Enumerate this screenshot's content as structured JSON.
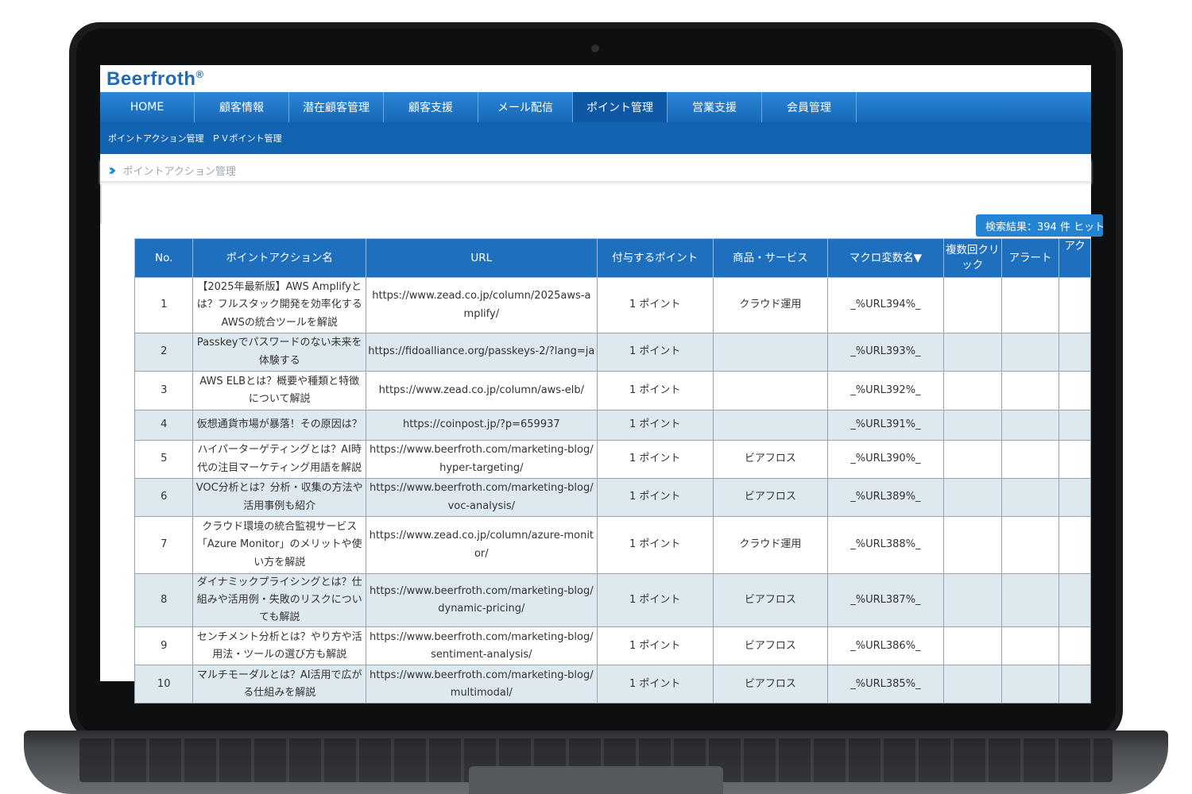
{
  "app": {
    "logo": "Beerfroth",
    "logo_mark": "®"
  },
  "nav": [
    "HOME",
    "顧客情報",
    "潜在顧客管理",
    "顧客支援",
    "メール配信",
    "ポイント管理",
    "営業支援",
    "会員管理"
  ],
  "nav_active_index": 5,
  "subnav": [
    "ポイントアクション管理",
    "ＰＶポイント管理"
  ],
  "breadcrumb": "ポイントアクション管理",
  "search_result": "検索結果：394 件 ヒット",
  "table": {
    "headers": [
      "No.",
      "ポイントアクション名",
      "URL",
      "付与するポイント",
      "商品・サービス",
      "マクロ変数名▼",
      "複数回クリック",
      "アラート",
      "アク"
    ],
    "rows": [
      {
        "no": "1",
        "name": "【2025年最新版】AWS Amplifyとは？フルスタック開発を効率化するAWSの統合ツールを解説",
        "url": "https://www.zead.co.jp/column/2025aws-amplify/",
        "points": "1 ポイント",
        "product": "クラウド運用",
        "macro": "_%URL394%_"
      },
      {
        "no": "2",
        "name": "Passkeyでパスワードのない未来を体験する",
        "url": "https://fidoalliance.org/passkeys-2/?lang=ja",
        "points": "1 ポイント",
        "product": "",
        "macro": "_%URL393%_"
      },
      {
        "no": "3",
        "name": "AWS ELBとは？概要や種類と特徴について解説",
        "url": "https://www.zead.co.jp/column/aws-elb/",
        "points": "1 ポイント",
        "product": "",
        "macro": "_%URL392%_"
      },
      {
        "no": "4",
        "name": "仮想通貨市場が暴落！その原因は？",
        "url": "https://coinpost.jp/?p=659937",
        "points": "1 ポイント",
        "product": "",
        "macro": "_%URL391%_"
      },
      {
        "no": "5",
        "name": "ハイパーターゲティングとは？AI時代の注目マーケティング用語を解説",
        "url": "https://www.beerfroth.com/marketing-blog/hyper-targeting/",
        "points": "1 ポイント",
        "product": "ビアフロス",
        "macro": "_%URL390%_"
      },
      {
        "no": "6",
        "name": "VOC分析とは？分析・収集の方法や活用事例も紹介",
        "url": "https://www.beerfroth.com/marketing-blog/voc-analysis/",
        "points": "1 ポイント",
        "product": "ビアフロス",
        "macro": "_%URL389%_"
      },
      {
        "no": "7",
        "name": "クラウド環境の統合監視サービス「Azure Monitor」のメリットや使い方を解説",
        "url": "https://www.zead.co.jp/column/azure-monitor/",
        "points": "1 ポイント",
        "product": "クラウド運用",
        "macro": "_%URL388%_"
      },
      {
        "no": "8",
        "name": "ダイナミックプライシングとは？仕組みや活用例・失敗のリスクについても解説",
        "url": "https://www.beerfroth.com/marketing-blog/dynamic-pricing/",
        "points": "1 ポイント",
        "product": "ビアフロス",
        "macro": "_%URL387%_"
      },
      {
        "no": "9",
        "name": "センチメント分析とは？やり方や活用法・ツールの選び方も解説",
        "url": "https://www.beerfroth.com/marketing-blog/sentiment-analysis/",
        "points": "1 ポイント",
        "product": "ビアフロス",
        "macro": "_%URL386%_"
      },
      {
        "no": "10",
        "name": "マルチモーダルとは？AI活用で広がる仕組みを解説",
        "url": "https://www.beerfroth.com/marketing-blog/multimodal/",
        "points": "1 ポイント",
        "product": "ビアフロス",
        "macro": "_%URL385%_"
      }
    ]
  },
  "colors": {
    "nav": "#1668b8",
    "header": "#1f6fbf",
    "row_alt": "#dde9ee",
    "badge": "#2484d4"
  }
}
